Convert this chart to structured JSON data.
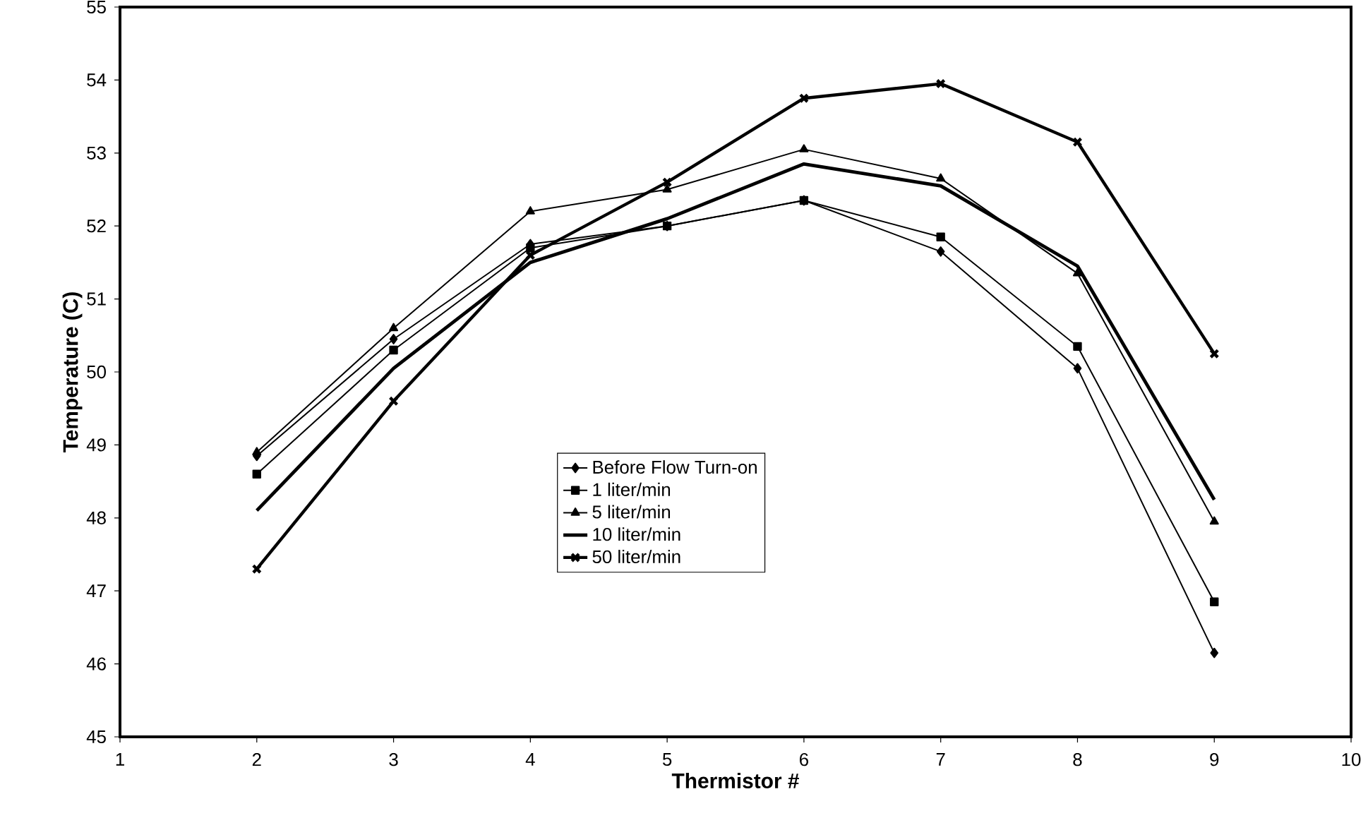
{
  "chart_data": {
    "type": "line",
    "xlabel": "Thermistor #",
    "ylabel": "Temperature (C)",
    "x": [
      2,
      3,
      4,
      5,
      6,
      7,
      8,
      9
    ],
    "xlim": [
      1,
      10
    ],
    "xticks": [
      1,
      2,
      3,
      4,
      5,
      6,
      7,
      8,
      9,
      10
    ],
    "ylim": [
      45,
      55
    ],
    "yticks": [
      45,
      46,
      47,
      48,
      49,
      50,
      51,
      52,
      53,
      54,
      55
    ],
    "grid": false,
    "legend": "center",
    "series": [
      {
        "name": "Before Flow Turn-on",
        "color": "#000000",
        "marker": "diamond",
        "values": [
          48.85,
          50.45,
          51.75,
          52.0,
          52.35,
          51.65,
          50.05,
          46.15
        ]
      },
      {
        "name": "1 liter/min",
        "color": "#000000",
        "marker": "square",
        "values": [
          48.6,
          50.3,
          51.7,
          52.0,
          52.35,
          51.85,
          50.35,
          46.85
        ]
      },
      {
        "name": "5 liter/min",
        "color": "#000000",
        "marker": "triangle",
        "values": [
          48.9,
          50.6,
          52.2,
          52.5,
          53.05,
          52.65,
          51.35,
          47.95
        ]
      },
      {
        "name": "10 liter/min",
        "color": "#000000",
        "marker": "none",
        "values": [
          48.1,
          50.05,
          51.5,
          52.1,
          52.85,
          52.55,
          51.45,
          48.25
        ]
      },
      {
        "name": "50 liter/min",
        "color": "#000000",
        "marker": "cross",
        "values": [
          47.3,
          49.6,
          51.6,
          52.6,
          53.75,
          53.95,
          53.15,
          50.25
        ]
      }
    ]
  }
}
